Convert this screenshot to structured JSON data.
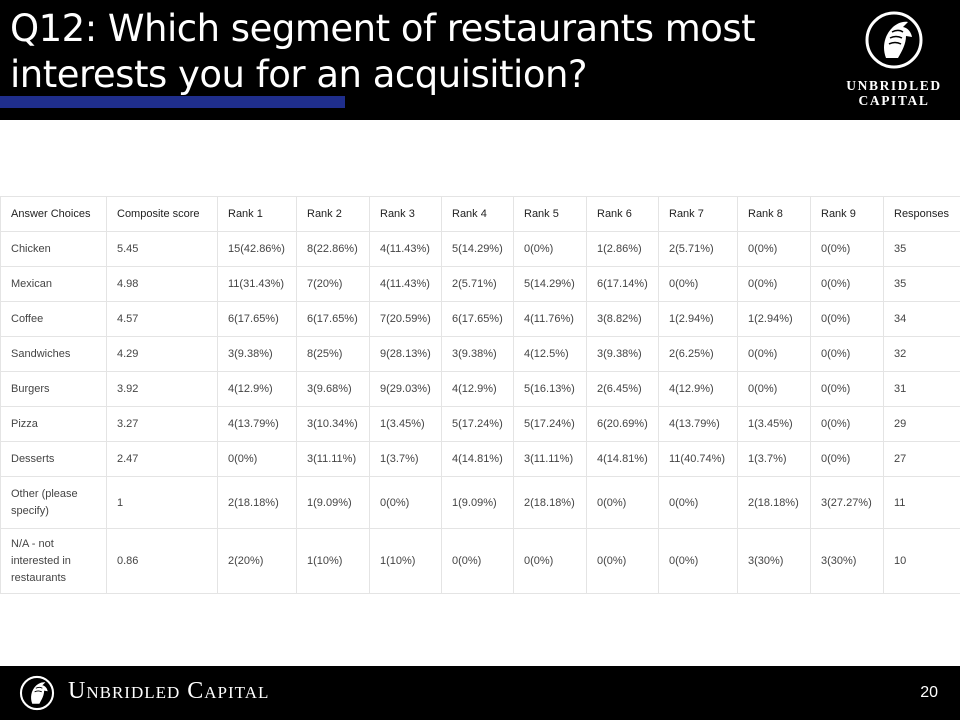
{
  "slide": {
    "title": "Q12: Which segment of restaurants most interests you for an acquisition?",
    "logo_text_line1": "UNBRIDLED",
    "logo_text_line2": "CAPITAL",
    "footer_brand": "Unbridled Capital",
    "page_number": "20",
    "accent_color": "#1f2e8c",
    "logo_icon": "horse-head-emblem-icon"
  },
  "table": {
    "headers": [
      "Answer Choices",
      "Composite score",
      "Rank 1",
      "Rank 2",
      "Rank 3",
      "Rank 4",
      "Rank 5",
      "Rank 6",
      "Rank 7",
      "Rank 8",
      "Rank 9",
      "Responses"
    ],
    "rows": [
      [
        "Chicken",
        "5.45",
        "15(42.86%)",
        "8(22.86%)",
        "4(11.43%)",
        "5(14.29%)",
        "0(0%)",
        "1(2.86%)",
        "2(5.71%)",
        "0(0%)",
        "0(0%)",
        "35"
      ],
      [
        "Mexican",
        "4.98",
        "11(31.43%)",
        "7(20%)",
        "4(11.43%)",
        "2(5.71%)",
        "5(14.29%)",
        "6(17.14%)",
        "0(0%)",
        "0(0%)",
        "0(0%)",
        "35"
      ],
      [
        "Coffee",
        "4.57",
        "6(17.65%)",
        "6(17.65%)",
        "7(20.59%)",
        "6(17.65%)",
        "4(11.76%)",
        "3(8.82%)",
        "1(2.94%)",
        "1(2.94%)",
        "0(0%)",
        "34"
      ],
      [
        "Sandwiches",
        "4.29",
        "3(9.38%)",
        "8(25%)",
        "9(28.13%)",
        "3(9.38%)",
        "4(12.5%)",
        "3(9.38%)",
        "2(6.25%)",
        "0(0%)",
        "0(0%)",
        "32"
      ],
      [
        "Burgers",
        "3.92",
        "4(12.9%)",
        "3(9.68%)",
        "9(29.03%)",
        "4(12.9%)",
        "5(16.13%)",
        "2(6.45%)",
        "4(12.9%)",
        "0(0%)",
        "0(0%)",
        "31"
      ],
      [
        "Pizza",
        "3.27",
        "4(13.79%)",
        "3(10.34%)",
        "1(3.45%)",
        "5(17.24%)",
        "5(17.24%)",
        "6(20.69%)",
        "4(13.79%)",
        "1(3.45%)",
        "0(0%)",
        "29"
      ],
      [
        "Desserts",
        "2.47",
        "0(0%)",
        "3(11.11%)",
        "1(3.7%)",
        "4(14.81%)",
        "3(11.11%)",
        "4(14.81%)",
        "11(40.74%)",
        "1(3.7%)",
        "0(0%)",
        "27"
      ],
      [
        "Other (please specify)",
        "1",
        "2(18.18%)",
        "1(9.09%)",
        "0(0%)",
        "1(9.09%)",
        "2(18.18%)",
        "0(0%)",
        "0(0%)",
        "2(18.18%)",
        "3(27.27%)",
        "11"
      ],
      [
        "N/A - not interested in restaurants",
        "0.86",
        "2(20%)",
        "1(10%)",
        "1(10%)",
        "0(0%)",
        "0(0%)",
        "0(0%)",
        "0(0%)",
        "3(30%)",
        "3(30%)",
        "10"
      ]
    ]
  }
}
